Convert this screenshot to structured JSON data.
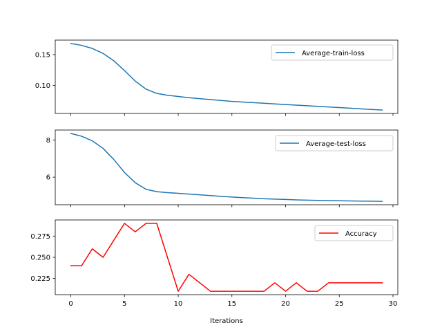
{
  "chart_data": [
    {
      "type": "line",
      "x": [
        0,
        1,
        2,
        3,
        4,
        5,
        6,
        7,
        8,
        9,
        10,
        11,
        12,
        13,
        14,
        15,
        16,
        17,
        18,
        19,
        20,
        21,
        22,
        23,
        24,
        25,
        26,
        27,
        28,
        29
      ],
      "series": [
        {
          "name": "Average-train-loss",
          "color": "#1f77b4",
          "values": [
            0.168,
            0.165,
            0.16,
            0.152,
            0.14,
            0.124,
            0.107,
            0.094,
            0.087,
            0.084,
            0.082,
            0.08,
            0.0785,
            0.077,
            0.0755,
            0.074,
            0.073,
            0.072,
            0.071,
            0.07,
            0.069,
            0.068,
            0.067,
            0.066,
            0.065,
            0.064,
            0.063,
            0.062,
            0.061,
            0.06
          ]
        }
      ],
      "xlim": [
        -1.45,
        30.45
      ],
      "ylim": [
        0.0545,
        0.1735
      ],
      "yticks": [
        0.1,
        0.15
      ],
      "ytick_labels": [
        "0.10",
        "0.15"
      ],
      "xticks": [
        0,
        5,
        10,
        15,
        20,
        25,
        30
      ],
      "xtick_labels": [],
      "xlabel": "",
      "ylabel": "",
      "legend": "top-right",
      "grid": false
    },
    {
      "type": "line",
      "x": [
        0,
        1,
        2,
        3,
        4,
        5,
        6,
        7,
        8,
        9,
        10,
        11,
        12,
        13,
        14,
        15,
        16,
        17,
        18,
        19,
        20,
        21,
        22,
        23,
        24,
        25,
        26,
        27,
        28,
        29
      ],
      "series": [
        {
          "name": "Average-test-loss",
          "color": "#1f77b4",
          "values": [
            8.35,
            8.2,
            7.95,
            7.55,
            6.95,
            6.25,
            5.7,
            5.35,
            5.22,
            5.17,
            5.13,
            5.09,
            5.05,
            5.01,
            4.97,
            4.93,
            4.9,
            4.87,
            4.84,
            4.82,
            4.8,
            4.78,
            4.765,
            4.75,
            4.74,
            4.73,
            4.72,
            4.715,
            4.71,
            4.7
          ]
        }
      ],
      "xlim": [
        -1.45,
        30.45
      ],
      "ylim": [
        4.5175,
        8.5325
      ],
      "yticks": [
        6,
        8
      ],
      "ytick_labels": [
        "6",
        "8"
      ],
      "xticks": [
        0,
        5,
        10,
        15,
        20,
        25,
        30
      ],
      "xtick_labels": [],
      "xlabel": "",
      "ylabel": "",
      "legend": "top-right",
      "grid": false
    },
    {
      "type": "line",
      "x": [
        0,
        1,
        2,
        3,
        4,
        5,
        6,
        7,
        8,
        9,
        10,
        11,
        12,
        13,
        14,
        15,
        16,
        17,
        18,
        19,
        20,
        21,
        22,
        23,
        24,
        25,
        26,
        27,
        28,
        29
      ],
      "series": [
        {
          "name": "Accuracy",
          "color": "#ff0000",
          "values": [
            0.24,
            0.24,
            0.26,
            0.25,
            0.27,
            0.29,
            0.28,
            0.29,
            0.29,
            0.25,
            0.21,
            0.23,
            0.22,
            0.21,
            0.21,
            0.21,
            0.21,
            0.21,
            0.21,
            0.22,
            0.21,
            0.22,
            0.21,
            0.21,
            0.22,
            0.22,
            0.22,
            0.22,
            0.22,
            0.22
          ]
        }
      ],
      "xlim": [
        -1.45,
        30.45
      ],
      "ylim": [
        0.206,
        0.294
      ],
      "yticks": [
        0.225,
        0.25,
        0.275
      ],
      "ytick_labels": [
        "0.225",
        "0.250",
        "0.275"
      ],
      "xticks": [
        0,
        5,
        10,
        15,
        20,
        25,
        30
      ],
      "xtick_labels": [
        "0",
        "5",
        "10",
        "15",
        "20",
        "25",
        "30"
      ],
      "xlabel": "Iterations",
      "ylabel": "",
      "legend": "top-right",
      "grid": false
    }
  ]
}
